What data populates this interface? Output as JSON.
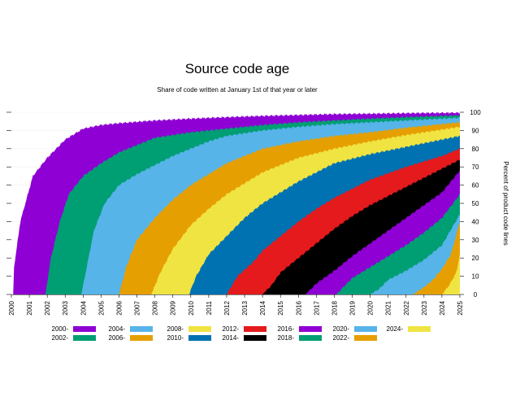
{
  "chart_data": {
    "type": "area",
    "title": "Source code age",
    "subtitle": "Share of code written at January 1st of that year or later",
    "xlabel": "",
    "ylabel": "Percent of product code lines",
    "xlim": [
      2000,
      2025
    ],
    "ylim": [
      0,
      100
    ],
    "grid": true,
    "legend_placement": "bottom",
    "x_ticks": [
      2000,
      2001,
      2002,
      2003,
      2004,
      2005,
      2006,
      2007,
      2008,
      2009,
      2010,
      2011,
      2012,
      2013,
      2014,
      2015,
      2016,
      2017,
      2018,
      2019,
      2020,
      2021,
      2022,
      2023,
      2024,
      2025
    ],
    "y_ticks": [
      0,
      10,
      20,
      30,
      40,
      50,
      60,
      70,
      80,
      90,
      100
    ],
    "series": [
      {
        "name": "2000-",
        "color": "#8E00D4",
        "start": 2000.1,
        "points": [
          [
            2000.1,
            0
          ],
          [
            2000.15,
            15
          ],
          [
            2000.5,
            40
          ],
          [
            2001.2,
            65
          ],
          [
            2002,
            75
          ],
          [
            2003,
            85
          ],
          [
            2004,
            91
          ],
          [
            2005,
            93
          ],
          [
            2006,
            94
          ],
          [
            2008,
            95.5
          ],
          [
            2010,
            96.5
          ],
          [
            2012,
            97.3
          ],
          [
            2014,
            98
          ],
          [
            2016,
            98.5
          ],
          [
            2018,
            99
          ],
          [
            2020,
            99.2
          ],
          [
            2022,
            99.5
          ],
          [
            2024,
            99.7
          ],
          [
            2025,
            99.8
          ]
        ]
      },
      {
        "name": "2002-",
        "color": "#009E73",
        "start": 2001.9,
        "points": [
          [
            2001.9,
            0
          ],
          [
            2002.2,
            20
          ],
          [
            2002.7,
            40
          ],
          [
            2003.2,
            55
          ],
          [
            2004,
            65
          ],
          [
            2005,
            72
          ],
          [
            2006,
            78
          ],
          [
            2007,
            82
          ],
          [
            2008,
            86
          ],
          [
            2010,
            89
          ],
          [
            2012,
            91
          ],
          [
            2014,
            93
          ],
          [
            2016,
            94.5
          ],
          [
            2018,
            95.5
          ],
          [
            2020,
            96.5
          ],
          [
            2022,
            97.3
          ],
          [
            2024,
            98
          ],
          [
            2025,
            98.3
          ]
        ]
      },
      {
        "name": "2004-",
        "color": "#56B4E9",
        "start": 2003.9,
        "points": [
          [
            2003.9,
            0
          ],
          [
            2004.2,
            15
          ],
          [
            2004.6,
            35
          ],
          [
            2005.2,
            50
          ],
          [
            2006,
            60
          ],
          [
            2007,
            66
          ],
          [
            2008,
            71
          ],
          [
            2009,
            76
          ],
          [
            2010,
            80
          ],
          [
            2011,
            84
          ],
          [
            2012,
            87
          ],
          [
            2014,
            90
          ],
          [
            2016,
            92
          ],
          [
            2018,
            93.5
          ],
          [
            2020,
            94.5
          ],
          [
            2022,
            95.5
          ],
          [
            2024,
            96.5
          ],
          [
            2025,
            97
          ]
        ]
      },
      {
        "name": "2006-",
        "color": "#E69F00",
        "start": 2006.0,
        "points": [
          [
            2006,
            0
          ],
          [
            2006.4,
            15
          ],
          [
            2007,
            30
          ],
          [
            2008,
            42
          ],
          [
            2009,
            52
          ],
          [
            2010,
            60
          ],
          [
            2011,
            66
          ],
          [
            2012,
            72
          ],
          [
            2013,
            76
          ],
          [
            2014,
            80
          ],
          [
            2016,
            84
          ],
          [
            2018,
            87
          ],
          [
            2020,
            89
          ],
          [
            2022,
            91.5
          ],
          [
            2024,
            93.5
          ],
          [
            2025,
            94.5
          ]
        ]
      },
      {
        "name": "2008-",
        "color": "#F0E442",
        "start": 2007.8,
        "points": [
          [
            2007.8,
            0
          ],
          [
            2008.3,
            12
          ],
          [
            2009,
            25
          ],
          [
            2010,
            38
          ],
          [
            2011,
            47
          ],
          [
            2012,
            55
          ],
          [
            2013,
            61
          ],
          [
            2014,
            67
          ],
          [
            2015,
            71
          ],
          [
            2016,
            75
          ],
          [
            2018,
            80
          ],
          [
            2020,
            84
          ],
          [
            2022,
            87.5
          ],
          [
            2024,
            90.5
          ],
          [
            2025,
            92
          ]
        ]
      },
      {
        "name": "2010-",
        "color": "#0072B2",
        "start": 2009.9,
        "points": [
          [
            2009.9,
            0
          ],
          [
            2010.3,
            10
          ],
          [
            2011,
            22
          ],
          [
            2012,
            32
          ],
          [
            2013,
            42
          ],
          [
            2014,
            50
          ],
          [
            2015,
            56
          ],
          [
            2016,
            62
          ],
          [
            2017,
            67
          ],
          [
            2018,
            72
          ],
          [
            2020,
            77
          ],
          [
            2022,
            81
          ],
          [
            2024,
            85
          ],
          [
            2025,
            87
          ]
        ]
      },
      {
        "name": "2012-",
        "color": "#E41A1C",
        "start": 2012.0,
        "points": [
          [
            2012,
            0
          ],
          [
            2012.6,
            10
          ],
          [
            2013.5,
            18
          ],
          [
            2014,
            24
          ],
          [
            2015,
            32
          ],
          [
            2016,
            40
          ],
          [
            2017,
            47
          ],
          [
            2018,
            53
          ],
          [
            2019,
            58
          ],
          [
            2020,
            63
          ],
          [
            2022,
            70
          ],
          [
            2024,
            76
          ],
          [
            2025,
            80
          ]
        ]
      },
      {
        "name": "2014-",
        "color": "#000000",
        "start": 2014.0,
        "points": [
          [
            2014,
            0
          ],
          [
            2014.5,
            5
          ],
          [
            2015,
            12
          ],
          [
            2016,
            20
          ],
          [
            2017,
            28
          ],
          [
            2018,
            36
          ],
          [
            2019,
            43
          ],
          [
            2020,
            49
          ],
          [
            2021,
            54
          ],
          [
            2022,
            59
          ],
          [
            2023,
            64
          ],
          [
            2024,
            69
          ],
          [
            2025,
            74
          ]
        ]
      },
      {
        "name": "2016-",
        "color": "#8E00D4",
        "start": 2016.4,
        "points": [
          [
            2016.4,
            0
          ],
          [
            2017,
            6
          ],
          [
            2018,
            13
          ],
          [
            2019,
            21
          ],
          [
            2020,
            28
          ],
          [
            2021,
            35
          ],
          [
            2022,
            42
          ],
          [
            2023,
            49
          ],
          [
            2024,
            56
          ],
          [
            2025,
            68
          ]
        ]
      },
      {
        "name": "2018-",
        "color": "#009E73",
        "start": 2018.1,
        "points": [
          [
            2018.1,
            0
          ],
          [
            2018.5,
            4
          ],
          [
            2019,
            9
          ],
          [
            2020,
            15
          ],
          [
            2021,
            21
          ],
          [
            2022,
            27
          ],
          [
            2023,
            34
          ],
          [
            2024,
            42
          ],
          [
            2025,
            55
          ]
        ]
      },
      {
        "name": "2020-",
        "color": "#56B4E9",
        "start": 2020.0,
        "points": [
          [
            2020,
            0
          ],
          [
            2020.5,
            3
          ],
          [
            2021,
            8
          ],
          [
            2022,
            13
          ],
          [
            2023,
            19
          ],
          [
            2024,
            27
          ],
          [
            2025,
            44
          ]
        ]
      },
      {
        "name": "2022-",
        "color": "#E69F00",
        "start": 2022.4,
        "points": [
          [
            2022.4,
            0
          ],
          [
            2023,
            4
          ],
          [
            2023.5,
            8
          ],
          [
            2024,
            14
          ],
          [
            2024.5,
            22
          ],
          [
            2025,
            40
          ]
        ]
      },
      {
        "name": "2024-",
        "color": "#F0E442",
        "start": 2024.0,
        "points": [
          [
            2024,
            0
          ],
          [
            2024.4,
            5
          ],
          [
            2024.8,
            12
          ],
          [
            2025,
            22
          ]
        ]
      }
    ]
  }
}
